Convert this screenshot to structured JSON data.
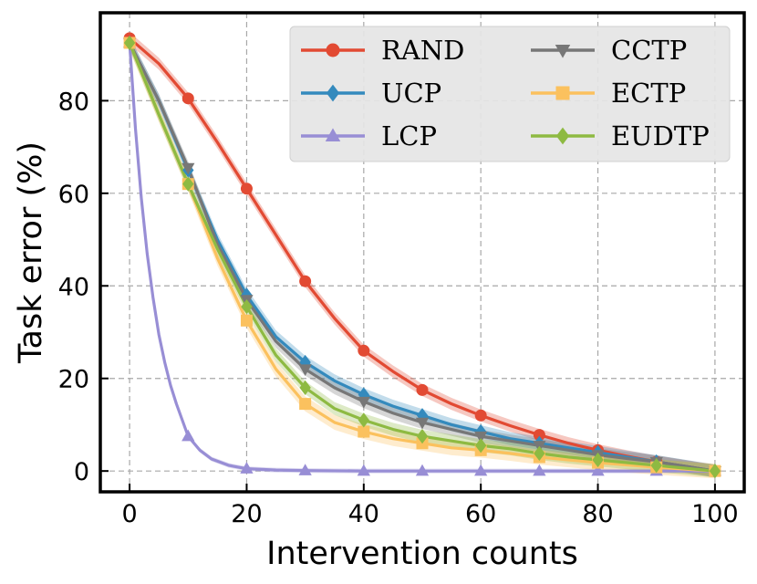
{
  "chart_data": {
    "type": "line",
    "title": "",
    "xlabel": "Intervention counts",
    "ylabel": "Task error (%)",
    "xlim": [
      -5,
      105
    ],
    "ylim": [
      -4.5,
      99
    ],
    "xticks": [
      0,
      20,
      40,
      60,
      80,
      100
    ],
    "yticks": [
      0,
      20,
      40,
      60,
      80
    ],
    "grid": true,
    "legend_position": "top-right",
    "marker_x": [
      0,
      10,
      20,
      30,
      40,
      50,
      60,
      70,
      80,
      90,
      100
    ],
    "series": [
      {
        "name": "RAND",
        "color": "#e24a33",
        "marker": "circle",
        "x": [
          0,
          5,
          10,
          15,
          20,
          25,
          30,
          35,
          40,
          45,
          50,
          55,
          60,
          65,
          70,
          75,
          80,
          85,
          90,
          95,
          100
        ],
        "values": [
          93.5,
          88,
          80.5,
          71,
          61,
          51,
          41,
          33,
          26,
          21.5,
          17.5,
          14.5,
          12,
          9.8,
          7.8,
          6,
          4.5,
          3.2,
          2,
          1,
          0
        ],
        "band": 1.3
      },
      {
        "name": "UCP",
        "color": "#348abd",
        "marker": "diamond",
        "x": [
          0,
          5,
          10,
          15,
          20,
          25,
          30,
          35,
          40,
          45,
          50,
          55,
          60,
          65,
          70,
          75,
          80,
          85,
          90,
          95,
          100
        ],
        "values": [
          92.5,
          80,
          65,
          50,
          38,
          29,
          23.5,
          19.5,
          16.5,
          14,
          12,
          10,
          8.5,
          7,
          6,
          5,
          4,
          3,
          2,
          1,
          0
        ],
        "band": 1.4
      },
      {
        "name": "LCP",
        "color": "#988ed5",
        "marker": "triangle-up",
        "x": [
          0,
          1,
          2,
          3,
          4,
          5,
          6,
          7,
          8,
          10,
          12,
          14,
          17,
          20,
          25,
          30,
          40,
          50,
          60,
          70,
          80,
          90,
          100
        ],
        "values": [
          92.5,
          74,
          59,
          47,
          37.5,
          29.5,
          23.5,
          18.5,
          14.5,
          7.5,
          4.5,
          2.6,
          1.2,
          0.5,
          0.2,
          0.1,
          0,
          0,
          0,
          0,
          0,
          0,
          0
        ],
        "band": 0.5
      },
      {
        "name": "CCTP",
        "color": "#777777",
        "marker": "triangle-down",
        "x": [
          0,
          5,
          10,
          15,
          20,
          25,
          30,
          35,
          40,
          45,
          50,
          55,
          60,
          65,
          70,
          75,
          80,
          85,
          90,
          95,
          100
        ],
        "values": [
          92.5,
          80,
          65.5,
          49,
          37,
          28,
          22,
          18,
          15,
          12.5,
          10.5,
          9,
          7.5,
          6.5,
          5.5,
          4.5,
          3.5,
          2.7,
          2,
          1,
          0
        ],
        "band": 1.4
      },
      {
        "name": "ECTP",
        "color": "#fbc15e",
        "marker": "square",
        "x": [
          0,
          5,
          10,
          15,
          20,
          25,
          30,
          35,
          40,
          45,
          50,
          55,
          60,
          65,
          70,
          75,
          80,
          85,
          90,
          95,
          100
        ],
        "values": [
          92.5,
          77,
          62,
          46,
          32.5,
          22,
          14.5,
          10.5,
          8.5,
          7,
          6,
          5,
          4.5,
          3.8,
          3,
          2.4,
          1.8,
          1.3,
          0.8,
          0.4,
          0
        ],
        "band": 1.6
      },
      {
        "name": "EUDTP",
        "color": "#8eba42",
        "marker": "diamond",
        "x": [
          0,
          5,
          10,
          15,
          20,
          25,
          30,
          35,
          40,
          45,
          50,
          55,
          60,
          65,
          70,
          75,
          80,
          85,
          90,
          95,
          100
        ],
        "values": [
          92.5,
          77,
          62,
          48,
          35.5,
          25,
          18,
          13.5,
          11,
          9,
          7.5,
          6.5,
          5.5,
          4.8,
          3.8,
          3,
          2.4,
          1.8,
          1.2,
          0.6,
          0
        ],
        "band": 1.4
      }
    ]
  }
}
